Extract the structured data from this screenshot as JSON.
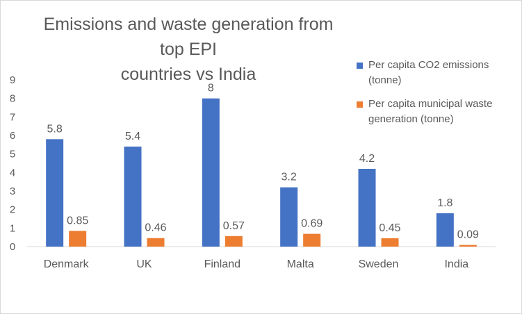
{
  "chart_data": {
    "type": "bar",
    "title_lines": [
      "Emissions and waste generation from top EPI",
      "countries vs India"
    ],
    "categories": [
      "Denmark",
      "UK",
      "Finland",
      "Malta",
      "Sweden",
      "India"
    ],
    "series": [
      {
        "name": "Per capita CO2 emissions (tonne)",
        "name_lines": [
          "Per capita CO2 emissions",
          "(tonne)"
        ],
        "color": "#4472c4",
        "values": [
          5.8,
          5.4,
          8,
          3.2,
          4.2,
          1.8
        ],
        "labels": [
          "5.8",
          "5.4",
          "8",
          "3.2",
          "4.2",
          "1.8"
        ]
      },
      {
        "name": "Per capita municipal waste generation (tonne)",
        "name_lines": [
          "Per capita municipal waste",
          "generation (tonne)"
        ],
        "color": "#ed7d31",
        "values": [
          0.85,
          0.46,
          0.57,
          0.69,
          0.45,
          0.09
        ],
        "labels": [
          "0.85",
          "0.46",
          "0.57",
          "0.69",
          "0.45",
          "0.09"
        ]
      }
    ],
    "y_ticks": [
      "0",
      "1",
      "2",
      "3",
      "4",
      "5",
      "6",
      "7",
      "8",
      "9"
    ],
    "ylim": [
      0,
      9
    ],
    "grid": false,
    "legend_position": "top-right",
    "colors": {
      "axis": "#d9d9d9",
      "text": "#595959"
    }
  }
}
